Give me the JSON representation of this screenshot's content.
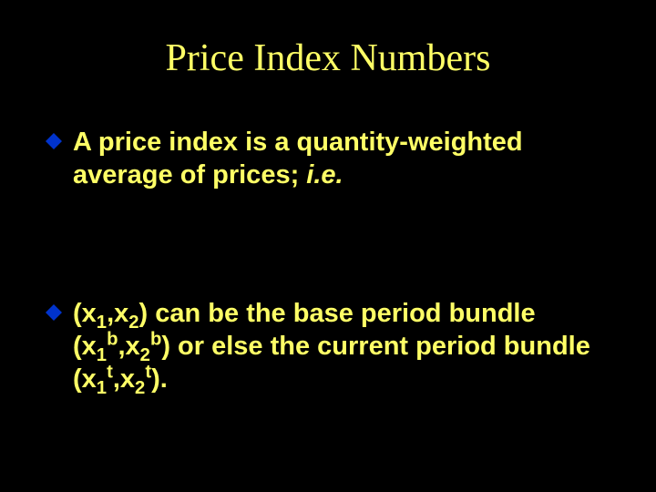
{
  "slide": {
    "title": "Price Index Numbers",
    "bullet_color": "#0033cc",
    "text_color": "#ffff66",
    "background_color": "#000000",
    "bullets": [
      {
        "lead": "A",
        "rest_pre_italic": " price index is a quantity-weighted average of prices; ",
        "italic_part": "i.e.",
        "rest_post_italic": ""
      },
      {
        "full_html": "(x<sub>1</sub>,x<sub>2</sub>) can be the base period bundle (x<sub>1</sub><sup style='font-size:0.7em;vertical-align:super;line-height:0;'>b</sup>,x<sub>2</sub><sup style='font-size:0.7em;vertical-align:super;line-height:0;'>b</sup>) or else the current period bundle (x<sub>1</sub><sup style='font-size:0.7em;vertical-align:super;line-height:0;'>t</sup>,x<sub>2</sub><sup style='font-size:0.7em;vertical-align:super;line-height:0;'>t</sup>)."
      }
    ]
  }
}
